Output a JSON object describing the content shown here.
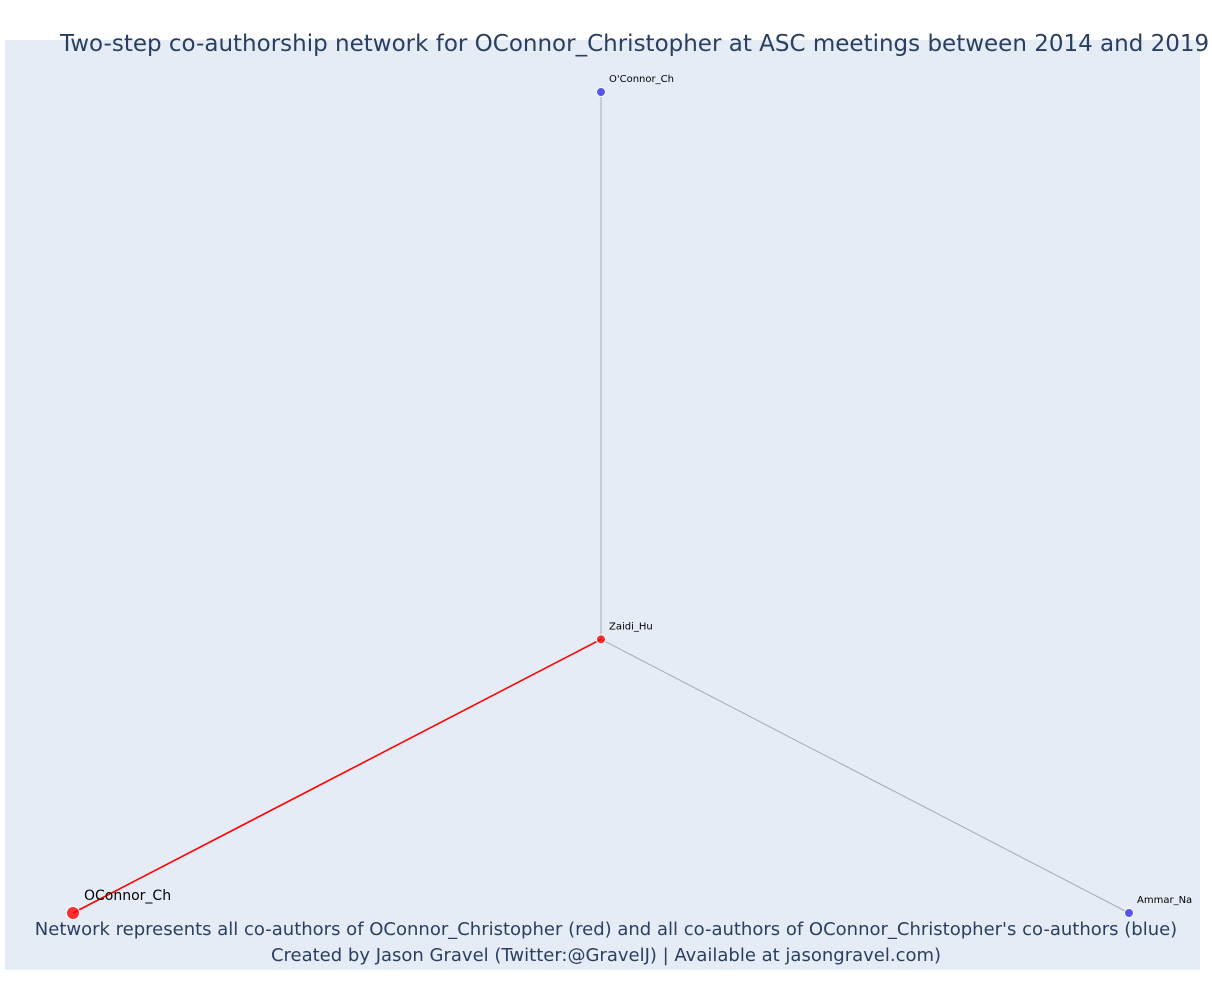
{
  "title": "Two-step co-authorship network for OConnor_Christopher at ASC meetings between 2014 and 2019",
  "caption_lines": [
    "Network represents all co-authors of OConnor_Christopher (red) and all co-authors of OConnor_Christopher's co-authors (blue)",
    "Created by Jason Gravel (Twitter:@GravelJ) | Available at jasongravel.com)"
  ],
  "colors": {
    "plot_background": "#e5ecf6",
    "focal": "#ff0000",
    "coauthor": "#ff0000",
    "second_step": "#3333ee",
    "edge_focal": "#ff0000",
    "edge_other": "#aaaaaa",
    "text": "#2a3f5f"
  },
  "chart_data": {
    "type": "network",
    "nodes": [
      {
        "id": "OConnor_Ch",
        "label": "OConnor_Ch",
        "group": "focal",
        "x": 0,
        "y": 0
      },
      {
        "id": "Zaidi_Hu",
        "label": "Zaidi_Hu",
        "group": "coauthor",
        "x": 1,
        "y": 1
      },
      {
        "id": "O'Connor_Ch",
        "label": "O'Connor_Ch",
        "group": "second_step",
        "x": 1,
        "y": 3
      },
      {
        "id": "Ammar_Na",
        "label": "Ammar_Na",
        "group": "second_step",
        "x": 2,
        "y": 0
      }
    ],
    "edges": [
      {
        "source": "OConnor_Ch",
        "target": "Zaidi_Hu",
        "type": "focal"
      },
      {
        "source": "Zaidi_Hu",
        "target": "O'Connor_Ch",
        "type": "other"
      },
      {
        "source": "Zaidi_Hu",
        "target": "Ammar_Na",
        "type": "other"
      }
    ],
    "xlim": [
      0,
      2
    ],
    "ylim": [
      0,
      3
    ],
    "grid": false,
    "legend": false
  }
}
